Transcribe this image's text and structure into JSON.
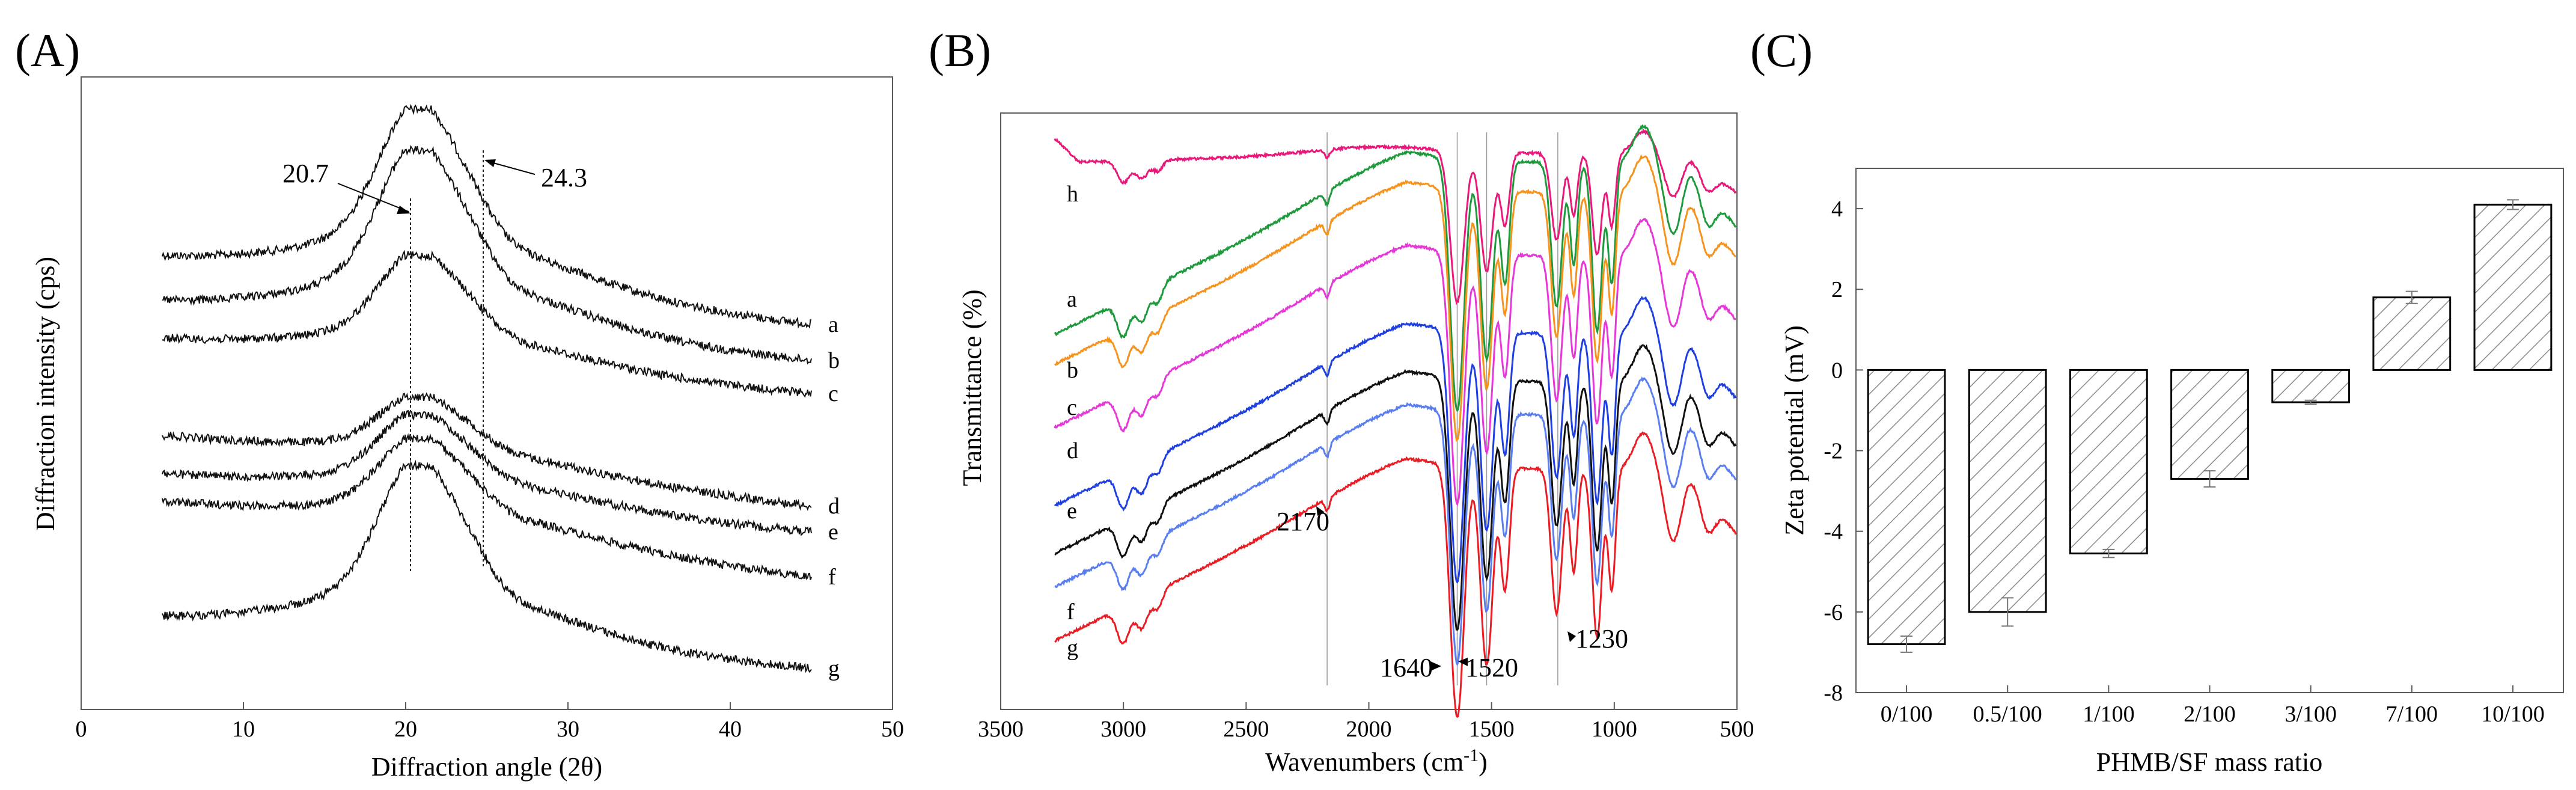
{
  "chart_data": [
    {
      "panel": "(A)",
      "type": "line",
      "xlabel": "Diffraction angle (2θ)",
      "ylabel": "Diffraction intensity (cps)",
      "xlim": [
        0,
        50
      ],
      "xticks": [
        0,
        10,
        20,
        30,
        40,
        50
      ],
      "grid": false,
      "series": [
        {
          "name": "a",
          "x_range": [
            5,
            45
          ],
          "peak_x": 20.7,
          "end_label": "a"
        },
        {
          "name": "b",
          "x_range": [
            5,
            45
          ],
          "peak_x": 20.7,
          "end_label": "b"
        },
        {
          "name": "c",
          "x_range": [
            5,
            45
          ],
          "peak_x": 20.7,
          "end_label": "c"
        },
        {
          "name": "d",
          "x_range": [
            5,
            45
          ],
          "peak_x": 20.7,
          "end_label": "d"
        },
        {
          "name": "e",
          "x_range": [
            5,
            45
          ],
          "peak_x": 20.7,
          "end_label": "e"
        },
        {
          "name": "f",
          "x_range": [
            5,
            45
          ],
          "peak_x": 20.7,
          "end_label": "f"
        },
        {
          "name": "g",
          "x_range": [
            5,
            45
          ],
          "peak_x": 20.7,
          "end_label": "g"
        }
      ],
      "reference_lines": [
        20.7,
        24.3
      ],
      "annotations": [
        "20.7",
        "24.3"
      ]
    },
    {
      "panel": "(B)",
      "type": "line",
      "xlabel": "Wavenumbers (cm⁻¹)",
      "ylabel": "Transmittance (%)",
      "xlim": [
        3500,
        500
      ],
      "xticks": [
        3500,
        3000,
        2500,
        2000,
        1500,
        1000,
        500
      ],
      "grid": false,
      "series": [
        {
          "name": "h",
          "color": "#e8197a"
        },
        {
          "name": "a",
          "color": "#1e9a3c"
        },
        {
          "name": "b",
          "color": "#f5931e"
        },
        {
          "name": "c",
          "color": "#e637d8"
        },
        {
          "name": "d",
          "color": "#1f3fe0"
        },
        {
          "name": "e",
          "color": "#111111"
        },
        {
          "name": "f",
          "color": "#5a7ef0"
        },
        {
          "name": "g",
          "color": "#ea1c24"
        }
      ],
      "reference_lines": [
        2170,
        1640,
        1520,
        1230
      ],
      "annotations": [
        "2170",
        "1640",
        "1520",
        "1230"
      ]
    },
    {
      "panel": "(C)",
      "type": "bar",
      "xlabel": "PHMB/SF mass ratio",
      "ylabel": "Zeta potential (mV)",
      "ylim": [
        -8,
        5
      ],
      "yticks": [
        -8,
        -6,
        -4,
        -2,
        0,
        2,
        4
      ],
      "categories": [
        "0/100",
        "0.5/100",
        "1/100",
        "2/100",
        "3/100",
        "7/100",
        "10/100"
      ],
      "values": [
        -6.8,
        -6.0,
        -4.55,
        -2.7,
        -0.8,
        1.8,
        4.1
      ],
      "errors": [
        0.2,
        0.35,
        0.1,
        0.2,
        0.05,
        0.15,
        0.12
      ],
      "bar_fill": "hatched",
      "grid": false
    }
  ]
}
